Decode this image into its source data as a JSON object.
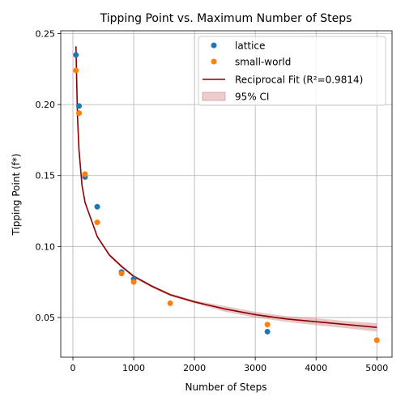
{
  "chart_data": {
    "type": "scatter",
    "title": "Tipping Point vs. Maximum Number of Steps",
    "xlabel": "Number of Steps",
    "ylabel": "Tipping Point (f*)",
    "xlim": [
      -200,
      5250
    ],
    "ylim": [
      0.022,
      0.252
    ],
    "x_ticks": [
      0,
      1000,
      2000,
      3000,
      4000,
      5000
    ],
    "y_ticks": [
      0.05,
      0.1,
      0.15,
      0.2,
      0.25
    ],
    "x_tick_labels": [
      "0",
      "1000",
      "2000",
      "3000",
      "4000",
      "5000"
    ],
    "y_tick_labels": [
      "0.05",
      "0.10",
      "0.15",
      "0.20",
      "0.25"
    ],
    "grid": true,
    "legend_position": "top-right",
    "series": [
      {
        "name": "lattice",
        "kind": "scatter",
        "color": "#1f77b4",
        "x": [
          50,
          100,
          200,
          400,
          800,
          1000,
          3200
        ],
        "y": [
          0.235,
          0.199,
          0.149,
          0.128,
          0.082,
          0.077,
          0.04
        ]
      },
      {
        "name": "small-world",
        "kind": "scatter",
        "color": "#ff7f0e",
        "x": [
          50,
          100,
          200,
          400,
          800,
          1000,
          1600,
          3200,
          5000
        ],
        "y": [
          0.224,
          0.194,
          0.151,
          0.117,
          0.081,
          0.075,
          0.06,
          0.045,
          0.034
        ]
      }
    ],
    "fit": {
      "name": "Reciprocal Fit (R²=0.9814)",
      "color": "#8b0000",
      "x": [
        50,
        75,
        100,
        150,
        200,
        300,
        400,
        600,
        800,
        1000,
        1300,
        1600,
        2000,
        2500,
        3000,
        3500,
        4000,
        4500,
        5000
      ],
      "y": [
        0.241,
        0.192,
        0.168,
        0.143,
        0.131,
        0.119,
        0.107,
        0.094,
        0.086,
        0.079,
        0.072,
        0.066,
        0.061,
        0.056,
        0.052,
        0.049,
        0.047,
        0.045,
        0.043
      ],
      "ci_name": "95% CI",
      "ci_color": "#c97070",
      "ci_lower": [
        0.239,
        0.19,
        0.167,
        0.142,
        0.13,
        0.118,
        0.106,
        0.093,
        0.085,
        0.078,
        0.071,
        0.065,
        0.06,
        0.054,
        0.05,
        0.047,
        0.0445,
        0.0425,
        0.04
      ],
      "ci_upper": [
        0.243,
        0.194,
        0.169,
        0.144,
        0.132,
        0.12,
        0.108,
        0.095,
        0.087,
        0.08,
        0.073,
        0.067,
        0.062,
        0.058,
        0.054,
        0.051,
        0.0495,
        0.0475,
        0.046
      ]
    }
  }
}
